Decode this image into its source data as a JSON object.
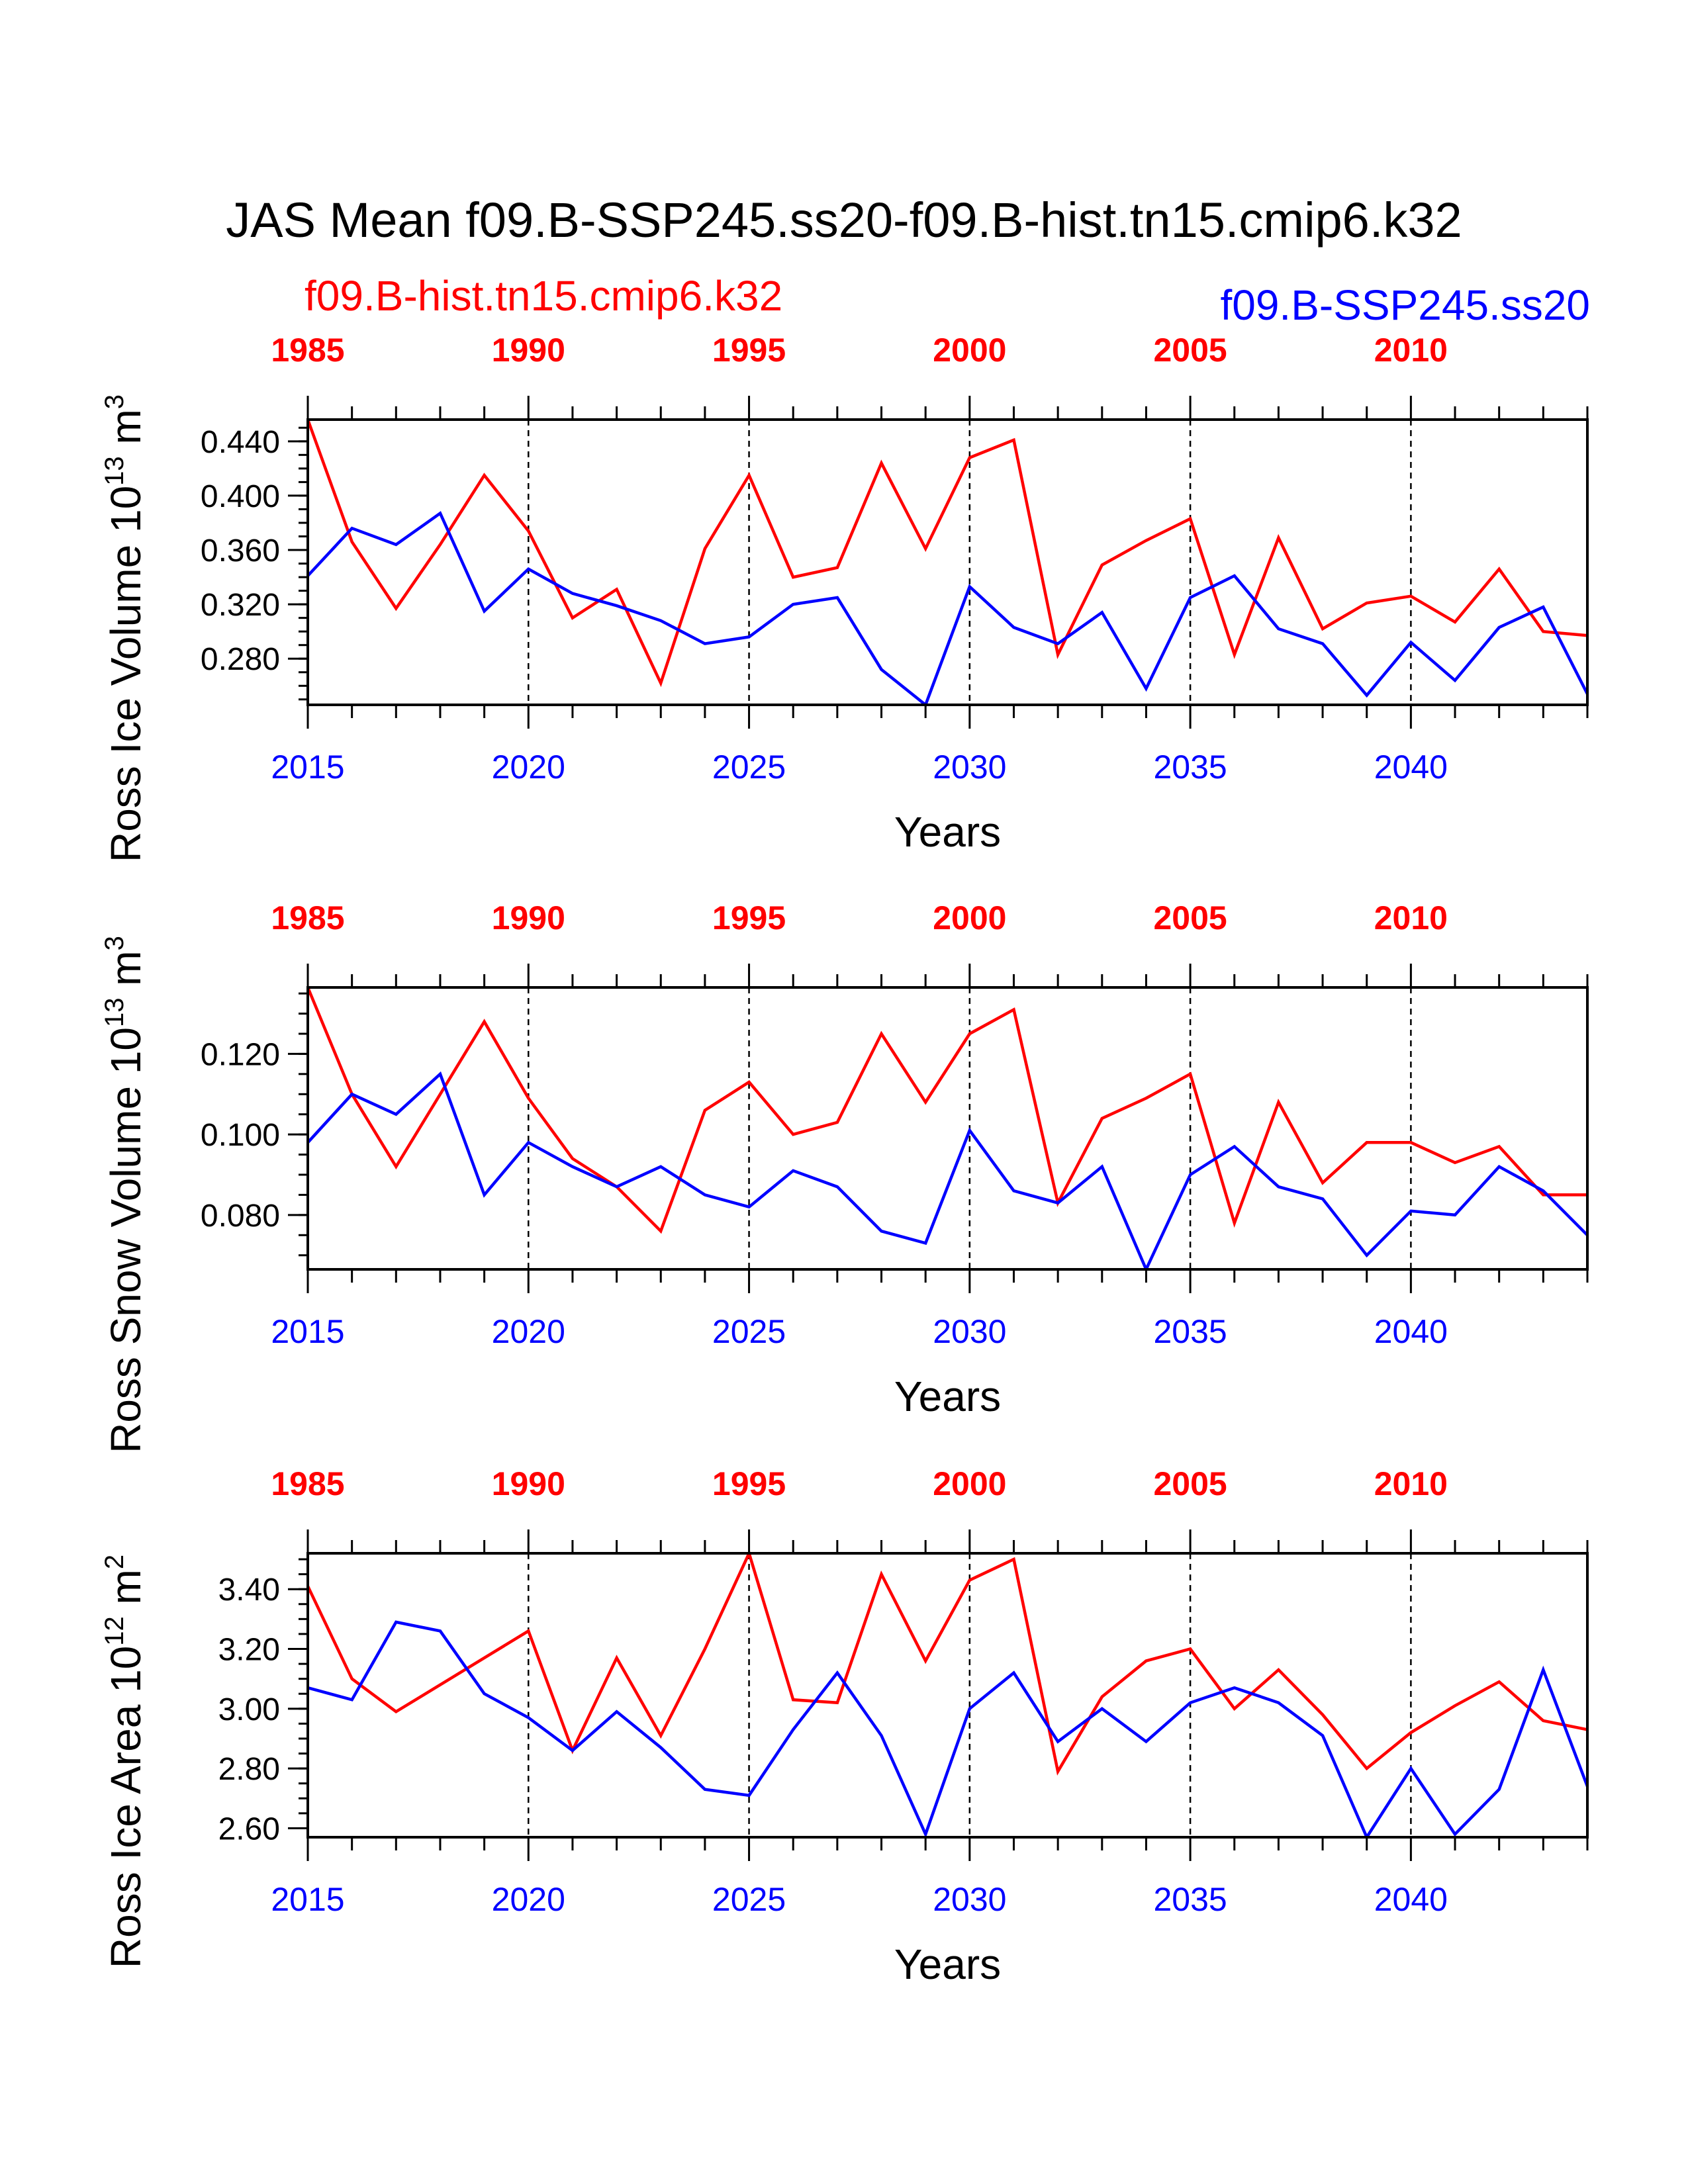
{
  "chart_data": [
    {
      "type": "line",
      "title": "JAS Mean f09.B-SSP245.ss20-f09.B-hist.tn15.cmip6.k32",
      "xlabel": "Years",
      "ylabel": "Ross Ice Volume 10",
      "ylabel_exp": "13",
      "ylabel_unit": " m",
      "ylabel_unit_exp": "3",
      "x_bottom_ticks": [
        "2015",
        "2020",
        "2025",
        "2030",
        "2035",
        "2040"
      ],
      "x_top_ticks": [
        "1985",
        "1990",
        "1995",
        "2000",
        "2005",
        "2010"
      ],
      "xlim": [
        2015,
        2044
      ],
      "ylim": [
        0.246,
        0.456
      ],
      "y_ticks": [
        "0.280",
        "0.320",
        "0.360",
        "0.400",
        "0.440"
      ],
      "y_tick_values": [
        0.28,
        0.32,
        0.36,
        0.4,
        0.44
      ],
      "series": [
        {
          "name": "f09.B-hist.tn15.cmip6.k32",
          "color": "#ff0000",
          "x_start": 1985,
          "values": [
            0.456,
            0.366,
            0.317,
            0.364,
            0.415,
            0.374,
            0.31,
            0.331,
            0.262,
            0.361,
            0.415,
            0.34,
            0.347,
            0.424,
            0.361,
            0.428,
            0.441,
            0.283,
            0.349,
            0.367,
            0.383,
            0.283,
            0.369,
            0.302,
            0.321,
            0.326,
            0.307,
            0.346,
            0.3,
            0.297
          ]
        },
        {
          "name": "f09.B-SSP245.ss20",
          "color": "#0000ff",
          "x_start": 2015,
          "values": [
            0.341,
            0.376,
            0.364,
            0.387,
            0.315,
            0.346,
            0.328,
            0.319,
            0.308,
            0.291,
            0.296,
            0.32,
            0.325,
            0.272,
            0.246,
            0.333,
            0.303,
            0.291,
            0.314,
            0.258,
            0.325,
            0.341,
            0.302,
            0.291,
            0.253,
            0.292,
            0.264,
            0.303,
            0.318,
            0.254
          ]
        }
      ]
    },
    {
      "type": "line",
      "xlabel": "Years",
      "ylabel": "Ross Snow Volume 10",
      "ylabel_exp": "13",
      "ylabel_unit": " m",
      "ylabel_unit_exp": "3",
      "x_bottom_ticks": [
        "2015",
        "2020",
        "2025",
        "2030",
        "2035",
        "2040"
      ],
      "x_top_ticks": [
        "1985",
        "1990",
        "1995",
        "2000",
        "2005",
        "2010"
      ],
      "xlim": [
        2015,
        2044
      ],
      "ylim": [
        0.0665,
        0.1365
      ],
      "y_ticks": [
        "0.080",
        "0.100",
        "0.120"
      ],
      "y_tick_values": [
        0.08,
        0.1,
        0.12
      ],
      "series": [
        {
          "name": "f09.B-hist.tn15.cmip6.k32",
          "color": "#ff0000",
          "x_start": 1985,
          "values": [
            0.1365,
            0.11,
            0.092,
            0.11,
            0.128,
            0.109,
            0.094,
            0.087,
            0.076,
            0.106,
            0.113,
            0.1,
            0.103,
            0.125,
            0.108,
            0.125,
            0.131,
            0.083,
            0.104,
            0.109,
            0.115,
            0.078,
            0.108,
            0.088,
            0.098,
            0.098,
            0.093,
            0.097,
            0.085,
            0.085
          ]
        },
        {
          "name": "f09.B-SSP245.ss20",
          "color": "#0000ff",
          "x_start": 2015,
          "values": [
            0.098,
            0.11,
            0.105,
            0.115,
            0.085,
            0.098,
            0.092,
            0.087,
            0.092,
            0.085,
            0.082,
            0.091,
            0.087,
            0.076,
            0.073,
            0.101,
            0.086,
            0.083,
            0.092,
            0.0665,
            0.09,
            0.097,
            0.087,
            0.084,
            0.07,
            0.081,
            0.08,
            0.092,
            0.086,
            0.075
          ]
        }
      ]
    },
    {
      "type": "line",
      "xlabel": "Years",
      "ylabel": "Ross Ice Area 10",
      "ylabel_exp": "12",
      "ylabel_unit": " m",
      "ylabel_unit_exp": "2",
      "x_bottom_ticks": [
        "2015",
        "2020",
        "2025",
        "2030",
        "2035",
        "2040"
      ],
      "x_top_ticks": [
        "1985",
        "1990",
        "1995",
        "2000",
        "2005",
        "2010"
      ],
      "xlim": [
        2015,
        2044
      ],
      "ylim": [
        2.57,
        3.52
      ],
      "y_ticks": [
        "2.60",
        "2.80",
        "3.00",
        "3.20",
        "3.40"
      ],
      "y_tick_values": [
        2.6,
        2.8,
        3.0,
        3.2,
        3.4
      ],
      "series": [
        {
          "name": "f09.B-hist.tn15.cmip6.k32",
          "color": "#ff0000",
          "x_start": 1985,
          "values": [
            3.41,
            3.1,
            2.99,
            3.08,
            3.17,
            3.26,
            2.86,
            3.17,
            2.91,
            3.2,
            3.52,
            3.03,
            3.02,
            3.45,
            3.16,
            3.43,
            3.5,
            2.79,
            3.04,
            3.16,
            3.2,
            3.0,
            3.13,
            2.98,
            2.8,
            2.92,
            3.01,
            3.09,
            2.96,
            2.93
          ]
        },
        {
          "name": "f09.B-SSP245.ss20",
          "color": "#0000ff",
          "x_start": 2015,
          "values": [
            3.07,
            3.03,
            3.29,
            3.26,
            3.05,
            2.97,
            2.86,
            2.99,
            2.87,
            2.73,
            2.71,
            2.93,
            3.12,
            2.91,
            2.58,
            3.0,
            3.12,
            2.89,
            3.0,
            2.89,
            3.02,
            3.07,
            3.02,
            2.91,
            2.57,
            2.8,
            2.58,
            2.73,
            3.13,
            2.74
          ]
        }
      ]
    }
  ],
  "colors": {
    "hist": "#ff0000",
    "ssp": "#0000ff",
    "axis": "#000000"
  }
}
